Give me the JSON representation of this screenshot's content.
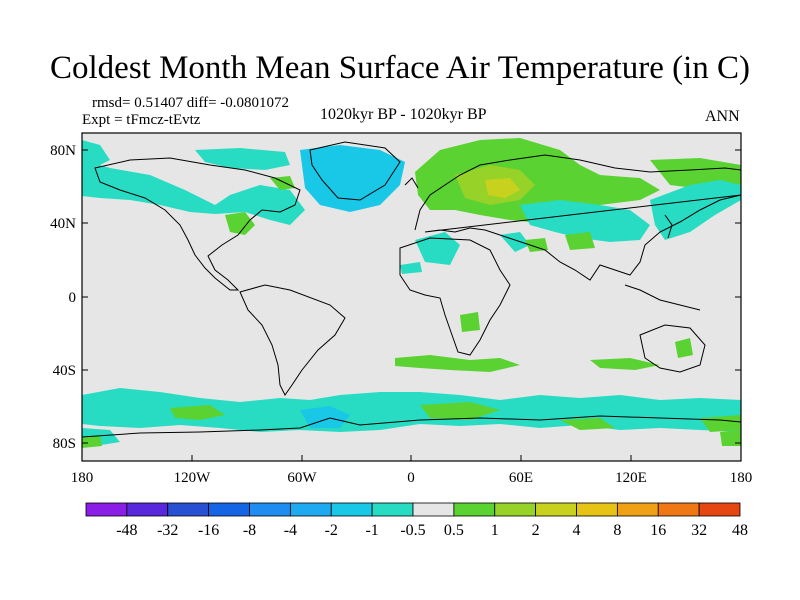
{
  "title": "Coldest Month Mean Surface Air Temperature (in C)",
  "stats": "rmsd= 0.51407 diff= -0.0801072",
  "experiment": "Expt = tFmcz-tEvtz",
  "period": "1020kyr BP - 1020kyr BP",
  "season": "ANN",
  "lat_ticks": [
    "80N",
    "40N",
    "0",
    "40S",
    "80S"
  ],
  "lon_ticks": [
    "180",
    "120W",
    "60W",
    "0",
    "60E",
    "120E",
    "180"
  ],
  "colorbar": {
    "labels": [
      "-48",
      "-32",
      "-16",
      "-8",
      "-4",
      "-2",
      "-1",
      "-0.5",
      "0.5",
      "1",
      "2",
      "4",
      "8",
      "16",
      "32",
      "48"
    ],
    "colors": [
      "#8b1ee6",
      "#5a28dc",
      "#2850d2",
      "#1464e6",
      "#1e8cf0",
      "#1eaaf0",
      "#19c8e6",
      "#28dcc3",
      "#e6e6e6",
      "#5ad232",
      "#96d228",
      "#c8d21e",
      "#e6c314",
      "#f0a014",
      "#f07814",
      "#e6460f"
    ]
  },
  "map_colors": {
    "background": "#e6e6e6",
    "neg_light": "#28dcc3",
    "neg_mid": "#19c8e6",
    "pos_light": "#5ad232",
    "pos_mid": "#96d228",
    "pos_strong": "#c8d21e"
  }
}
